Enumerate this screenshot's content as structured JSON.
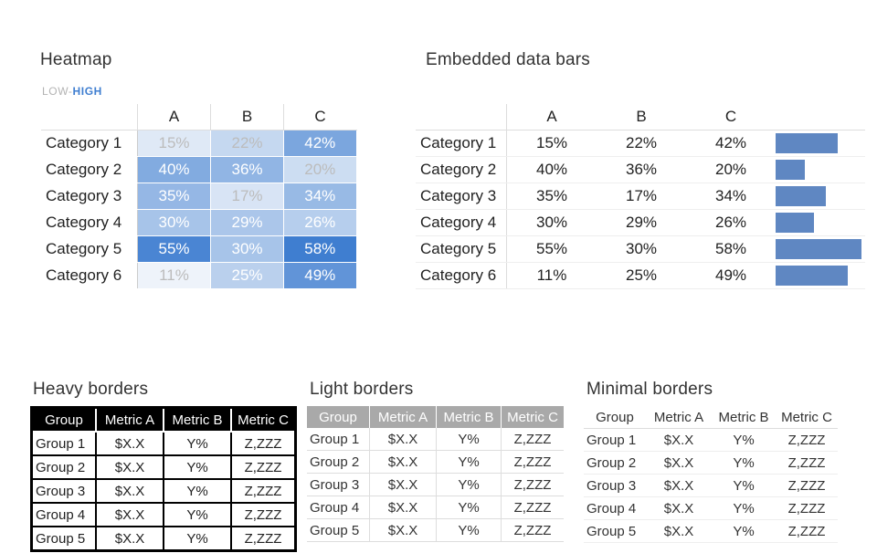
{
  "heatmap": {
    "title": "Heatmap",
    "legend": {
      "low": "LOW",
      "sep": "-",
      "high": "HIGH"
    },
    "columns": [
      "A",
      "B",
      "C"
    ],
    "rows": [
      {
        "label": "Category 1",
        "values": [
          "15%",
          "22%",
          "42%"
        ],
        "nums": [
          15,
          22,
          42
        ]
      },
      {
        "label": "Category 2",
        "values": [
          "40%",
          "36%",
          "20%"
        ],
        "nums": [
          40,
          36,
          20
        ]
      },
      {
        "label": "Category 3",
        "values": [
          "35%",
          "17%",
          "34%"
        ],
        "nums": [
          35,
          17,
          34
        ]
      },
      {
        "label": "Category 4",
        "values": [
          "30%",
          "29%",
          "26%"
        ],
        "nums": [
          30,
          29,
          26
        ]
      },
      {
        "label": "Category 5",
        "values": [
          "55%",
          "30%",
          "58%"
        ],
        "nums": [
          55,
          30,
          58
        ]
      },
      {
        "label": "Category 6",
        "values": [
          "11%",
          "25%",
          "49%"
        ],
        "nums": [
          11,
          25,
          49
        ]
      }
    ]
  },
  "databars": {
    "title": "Embedded data bars",
    "columns": [
      "A",
      "B",
      "C"
    ],
    "bar_color": "#5f87c2",
    "rows": [
      {
        "label": "Category 1",
        "values": [
          "15%",
          "22%",
          "42%"
        ]
      },
      {
        "label": "Category 2",
        "values": [
          "40%",
          "36%",
          "20%"
        ]
      },
      {
        "label": "Category 3",
        "values": [
          "35%",
          "17%",
          "34%"
        ]
      },
      {
        "label": "Category 4",
        "values": [
          "30%",
          "29%",
          "26%"
        ]
      },
      {
        "label": "Category 5",
        "values": [
          "55%",
          "30%",
          "58%"
        ]
      },
      {
        "label": "Category 6",
        "values": [
          "11%",
          "25%",
          "49%"
        ]
      }
    ]
  },
  "group_tables": [
    {
      "title": "Heavy borders",
      "style": "heavy",
      "headers": [
        "Group",
        "Metric A",
        "Metric B",
        "Metric C"
      ],
      "rows": [
        [
          "Group 1",
          "$X.X",
          "Y%",
          "Z,ZZZ"
        ],
        [
          "Group 2",
          "$X.X",
          "Y%",
          "Z,ZZZ"
        ],
        [
          "Group 3",
          "$X.X",
          "Y%",
          "Z,ZZZ"
        ],
        [
          "Group 4",
          "$X.X",
          "Y%",
          "Z,ZZZ"
        ],
        [
          "Group 5",
          "$X.X",
          "Y%",
          "Z,ZZZ"
        ]
      ]
    },
    {
      "title": "Light borders",
      "style": "light",
      "headers": [
        "Group",
        "Metric A",
        "Metric B",
        "Metric C"
      ],
      "rows": [
        [
          "Group 1",
          "$X.X",
          "Y%",
          "Z,ZZZ"
        ],
        [
          "Group 2",
          "$X.X",
          "Y%",
          "Z,ZZZ"
        ],
        [
          "Group 3",
          "$X.X",
          "Y%",
          "Z,ZZZ"
        ],
        [
          "Group 4",
          "$X.X",
          "Y%",
          "Z,ZZZ"
        ],
        [
          "Group 5",
          "$X.X",
          "Y%",
          "Z,ZZZ"
        ]
      ]
    },
    {
      "title": "Minimal borders",
      "style": "minimal",
      "headers": [
        "Group",
        "Metric A",
        "Metric B",
        "Metric C"
      ],
      "rows": [
        [
          "Group 1",
          "$X.X",
          "Y%",
          "Z,ZZZ"
        ],
        [
          "Group 2",
          "$X.X",
          "Y%",
          "Z,ZZZ"
        ],
        [
          "Group 3",
          "$X.X",
          "Y%",
          "Z,ZZZ"
        ],
        [
          "Group 4",
          "$X.X",
          "Y%",
          "Z,ZZZ"
        ],
        [
          "Group 5",
          "$X.X",
          "Y%",
          "Z,ZZZ"
        ]
      ]
    }
  ],
  "chart_data": [
    {
      "type": "heatmap",
      "title": "Heatmap",
      "categories": [
        "Category 1",
        "Category 2",
        "Category 3",
        "Category 4",
        "Category 5",
        "Category 6"
      ],
      "columns": [
        "A",
        "B",
        "C"
      ],
      "values": [
        [
          15,
          22,
          42
        ],
        [
          40,
          36,
          20
        ],
        [
          35,
          17,
          34
        ],
        [
          30,
          29,
          26
        ],
        [
          55,
          30,
          58
        ],
        [
          11,
          25,
          49
        ]
      ],
      "legend": "LOW-HIGH",
      "color_low": "#eef3fa",
      "color_high": "#3f7ed0"
    },
    {
      "type": "bar",
      "title": "Embedded data bars",
      "categories": [
        "Category 1",
        "Category 2",
        "Category 3",
        "Category 4",
        "Category 5",
        "Category 6"
      ],
      "series": [
        {
          "name": "A",
          "values": [
            15,
            40,
            35,
            30,
            55,
            11
          ]
        },
        {
          "name": "B",
          "values": [
            22,
            36,
            17,
            29,
            30,
            25
          ]
        },
        {
          "name": "C",
          "values": [
            42,
            20,
            34,
            26,
            58,
            49
          ]
        }
      ],
      "bars_for": "C"
    }
  ]
}
